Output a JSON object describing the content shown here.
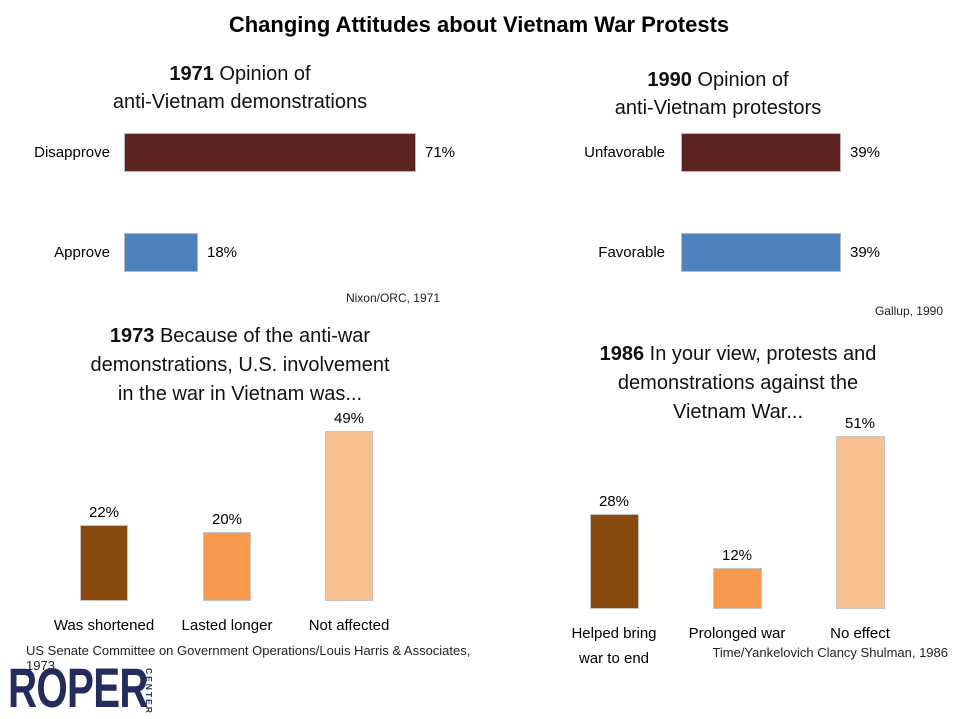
{
  "page_title": "Changing Attitudes about Vietnam War Protests",
  "logo": {
    "text": "ROPER",
    "subtext": "CENTER",
    "color": "#232C5F"
  },
  "colors": {
    "maroon": "#5C2421",
    "blue": "#4E80BC",
    "dark_brown": "#8A4A0E",
    "orange": "#F89A4E",
    "peach": "#F9C091",
    "bar_border": "#B9B9B9",
    "logo_navy": "#232C5F"
  },
  "chart_data": [
    {
      "type": "bar",
      "orientation": "horizontal",
      "title": "1971 Opinion of anti-Vietnam demonstrations",
      "title_year": "1971",
      "title_rest": " Opinion of\nanti-Vietnam demonstrations",
      "categories": [
        "Disapprove",
        "Approve"
      ],
      "values": [
        71,
        18
      ],
      "value_labels": [
        "71%",
        "18%"
      ],
      "bar_colors": [
        "#5C2421",
        "#4E80BC"
      ],
      "xlim": [
        0,
        100
      ],
      "grid": false,
      "source": "Nixon/ORC, 1971"
    },
    {
      "type": "bar",
      "orientation": "horizontal",
      "title": "1990 Opinion of anti-Vietnam protestors",
      "title_year": "1990",
      "title_rest": " Opinion of\nanti-Vietnam protestors",
      "categories": [
        "Unfavorable",
        "Favorable"
      ],
      "values": [
        39,
        39
      ],
      "value_labels": [
        "39%",
        "39%"
      ],
      "bar_colors": [
        "#5C2421",
        "#4E80BC"
      ],
      "xlim": [
        0,
        100
      ],
      "grid": false,
      "source": "Gallup, 1990"
    },
    {
      "type": "bar",
      "orientation": "vertical",
      "title": "1973 Because of the anti-war demonstrations, U.S. involvement in the war in Vietnam was...",
      "title_year": "1973",
      "title_rest": " Because of the anti-war\ndemonstrations, U.S. involvement\nin the war in Vietnam was...",
      "categories": [
        "Was shortened",
        "Lasted longer",
        "Not affected"
      ],
      "values": [
        22,
        20,
        49
      ],
      "value_labels": [
        "22%",
        "20%",
        "49%"
      ],
      "bar_colors": [
        "#8A4A0E",
        "#F89A4E",
        "#F9C091"
      ],
      "ylim": [
        0,
        100
      ],
      "grid": false,
      "source": "US Senate Committee on Government Operations/Louis Harris & Associates, 1973"
    },
    {
      "type": "bar",
      "orientation": "vertical",
      "title": "1986 In your view, protests and demonstrations against the Vietnam War...",
      "title_year": "1986",
      "title_rest": " In your view, protests and\ndemonstrations against the\nVietnam War...",
      "categories": [
        "Helped bring\nwar to end",
        "Prolonged war",
        "No effect"
      ],
      "values": [
        28,
        12,
        51
      ],
      "value_labels": [
        "28%",
        "12%",
        "51%"
      ],
      "bar_colors": [
        "#8A4A0E",
        "#F89A4E",
        "#F9C091"
      ],
      "ylim": [
        0,
        100
      ],
      "grid": false,
      "source": "Time/Yankelovich Clancy Shulman, 1986"
    }
  ]
}
